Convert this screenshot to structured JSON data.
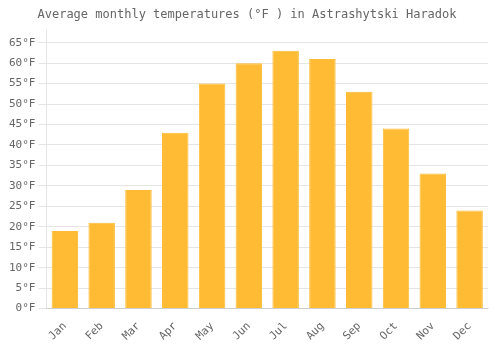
{
  "chart_data": {
    "type": "bar",
    "title": "Average monthly temperatures (°F ) in Astrashytski Haradok",
    "categories": [
      "Jan",
      "Feb",
      "Mar",
      "Apr",
      "May",
      "Jun",
      "Jul",
      "Aug",
      "Sep",
      "Oct",
      "Nov",
      "Dec"
    ],
    "values": [
      19,
      21,
      29,
      43,
      55,
      60,
      63,
      61,
      53,
      44,
      33,
      24
    ],
    "color": "#FFBB33",
    "ylim": [
      0,
      68
    ],
    "yticks": [
      {
        "value": 0,
        "label": "0°F"
      },
      {
        "value": 5,
        "label": "5°F"
      },
      {
        "value": 10,
        "label": "10°F"
      },
      {
        "value": 15,
        "label": "15°F"
      },
      {
        "value": 20,
        "label": "20°F"
      },
      {
        "value": 25,
        "label": "25°F"
      },
      {
        "value": 30,
        "label": "30°F"
      },
      {
        "value": 35,
        "label": "35°F"
      },
      {
        "value": 40,
        "label": "40°F"
      },
      {
        "value": 45,
        "label": "45°F"
      },
      {
        "value": 50,
        "label": "50°F"
      },
      {
        "value": 55,
        "label": "55°F"
      },
      {
        "value": 60,
        "label": "60°F"
      },
      {
        "value": 65,
        "label": "65°F"
      }
    ],
    "grid": true
  }
}
